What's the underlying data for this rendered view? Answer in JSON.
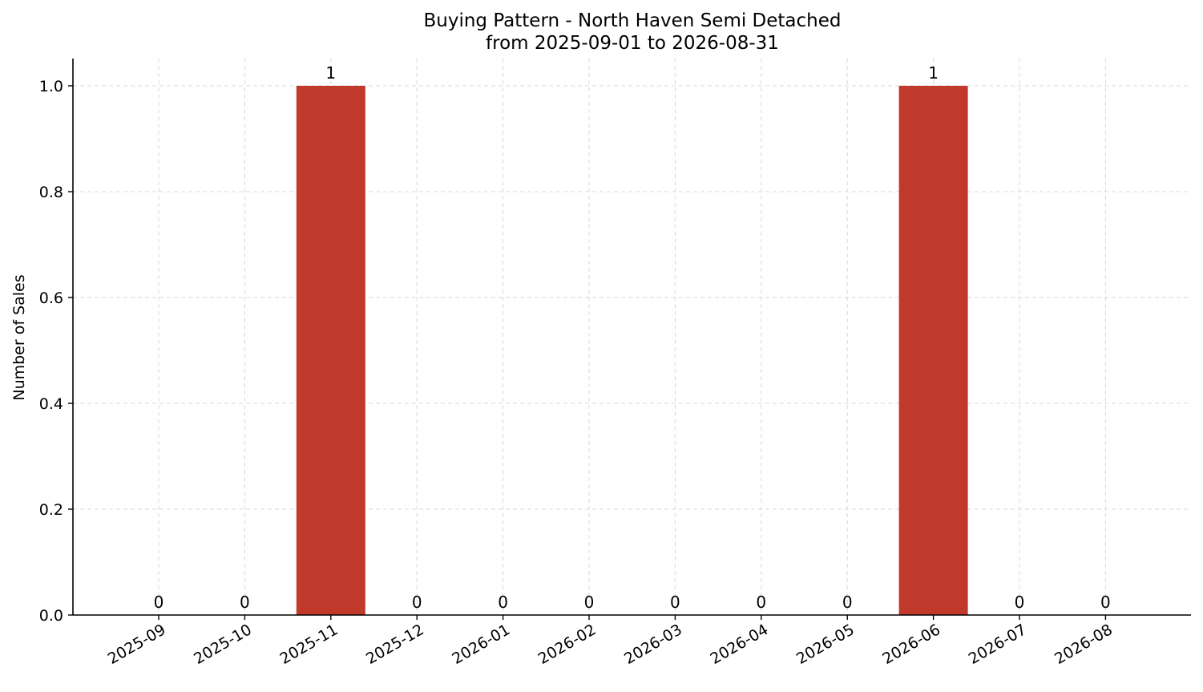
{
  "chart_data": {
    "type": "bar",
    "title": "Buying Pattern - North Haven Semi Detached",
    "subtitle": "from 2025-09-01 to 2026-08-31",
    "xlabel": "",
    "ylabel": "Number of Sales",
    "categories": [
      "2025-09",
      "2025-10",
      "2025-11",
      "2025-12",
      "2026-01",
      "2026-02",
      "2026-03",
      "2026-04",
      "2026-05",
      "2026-06",
      "2026-07",
      "2026-08"
    ],
    "values": [
      0,
      0,
      1,
      0,
      0,
      0,
      0,
      0,
      0,
      1,
      0,
      0
    ],
    "data_labels": [
      "0",
      "0",
      "1",
      "0",
      "0",
      "0",
      "0",
      "0",
      "0",
      "1",
      "0",
      "0"
    ],
    "ylim": [
      0,
      1.05
    ],
    "yticks": [
      "0.0",
      "0.2",
      "0.4",
      "0.6",
      "0.8",
      "1.0"
    ],
    "grid": true,
    "bar_color": "#c0392b"
  }
}
